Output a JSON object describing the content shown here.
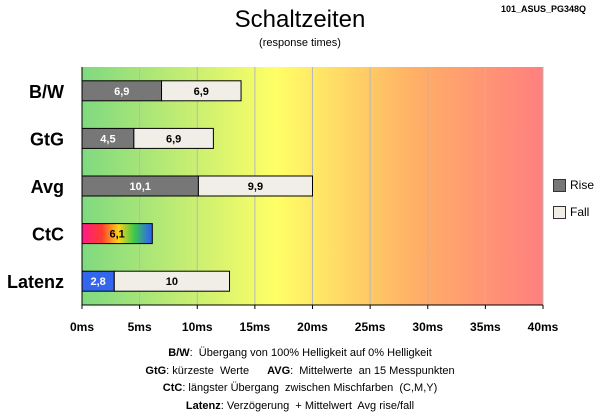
{
  "figure_id": "101_ASUS_PG348Q",
  "chart_data": {
    "type": "bar",
    "title": "Schaltzeiten",
    "subtitle": "(response times)",
    "categories": [
      "B/W",
      "GtG",
      "Avg",
      "CtC",
      "Latenz"
    ],
    "series": [
      {
        "name": "Rise",
        "values": [
          6.9,
          4.5,
          10.1,
          6.1,
          2.8
        ]
      },
      {
        "name": "Fall",
        "values": [
          6.9,
          6.9,
          9.9,
          null,
          10
        ]
      }
    ],
    "value_labels": {
      "rise": [
        "6,9",
        "4,5",
        "10,1",
        "6,1",
        "2,8"
      ],
      "fall": [
        "6,9",
        "6,9",
        "9,9",
        "",
        "10"
      ]
    },
    "x_ticks": [
      "0ms",
      "5ms",
      "10ms",
      "15ms",
      "20ms",
      "25ms",
      "30ms",
      "35ms",
      "40ms"
    ],
    "xlim": [
      0,
      40
    ],
    "grid": true,
    "legend_position": "right",
    "background_gradient": [
      "#7fd980",
      "#ffff66",
      "#ffb066",
      "#ff7f7f"
    ],
    "colors": {
      "rise": "#777777",
      "fall": "#f0eee6",
      "latenz_rise": "#3366ee",
      "border": "#000000"
    }
  },
  "footnotes": [
    {
      "key": "B/W",
      "text": ":  Übergang von 100% Helligkeit auf 0% Helligkeit"
    },
    {
      "key": "GtG",
      "text": ": kürzeste  Werte",
      "key2": "AVG",
      "text2": ":  Mittelwerte  an 15 Messpunkten"
    },
    {
      "key": "CtC",
      "text": ": längster Übergang  zwischen Mischfarben  (C,M,Y)"
    },
    {
      "key": "Latenz",
      "text": ": Verzögerung  + Mittelwert  Avg rise/fall"
    }
  ]
}
